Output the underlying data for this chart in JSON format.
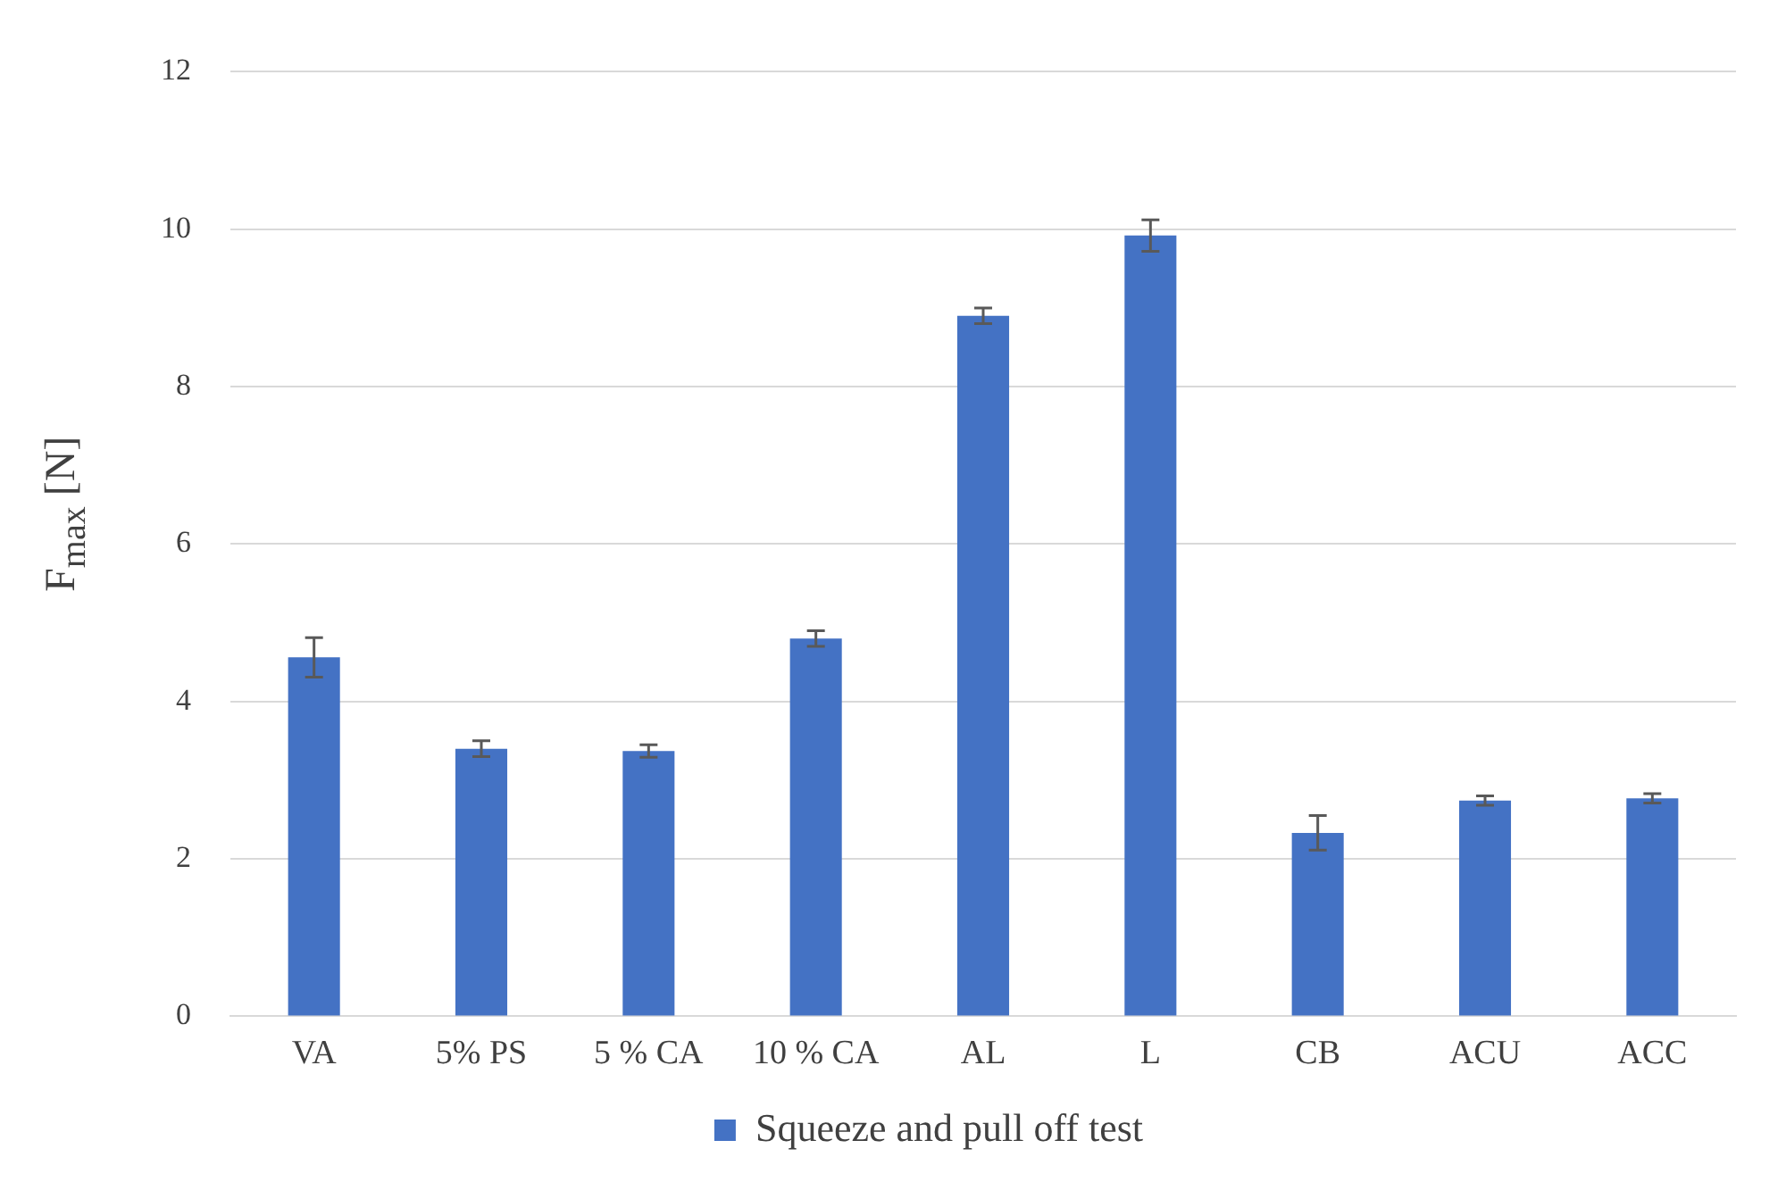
{
  "chart_data": {
    "type": "bar",
    "ylabel": "F$_{max}$ [N]",
    "categories": [
      "VA",
      "5% PS",
      "5 % CA",
      "10 % CA",
      "AL",
      "L",
      "CB",
      "ACU",
      "ACC"
    ],
    "series": [
      {
        "name": "Squeeze and pull off test",
        "color": "#4472c4",
        "values": [
          4.56,
          3.4,
          3.37,
          4.8,
          8.9,
          9.92,
          2.33,
          2.74,
          2.77
        ],
        "errors": [
          0.25,
          0.1,
          0.08,
          0.1,
          0.1,
          0.2,
          0.22,
          0.06,
          0.06
        ]
      }
    ],
    "ylim": [
      0,
      12
    ],
    "yticks": [
      0,
      2,
      4,
      6,
      8,
      10,
      12
    ],
    "grid": "y",
    "legend": "bottom"
  }
}
